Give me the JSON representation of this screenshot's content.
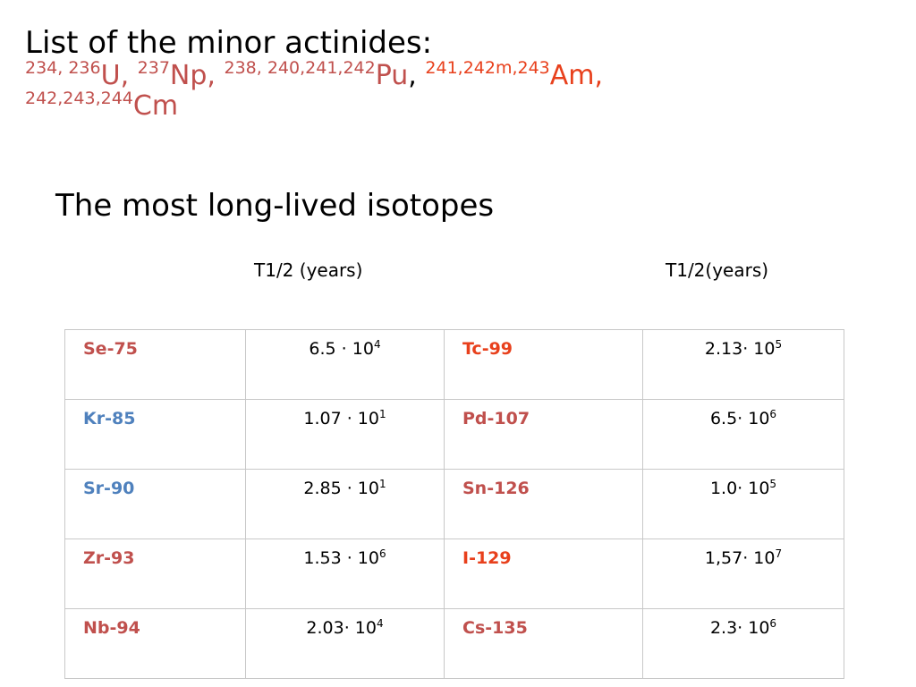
{
  "title": "List of the minor actinides:",
  "actinides": [
    {
      "mass": "234, 236",
      "symbol": "U,",
      "color": "#c0504d"
    },
    {
      "mass": "237",
      "symbol": "Np,",
      "color": "#c0504d"
    },
    {
      "mass": "238, 240,241,242",
      "symbol": "Pu",
      "color": "#c0504d",
      "trailing": ","
    },
    {
      "mass": "241,242m,243",
      "symbol": "Am,",
      "color": "#e8401c"
    },
    {
      "mass": "242,243,244",
      "symbol": "Cm",
      "color": "#c0504d"
    }
  ],
  "subtitle": "The most long-lived isotopes",
  "col_headers": [
    "T1/2 (years)",
    "T1/2(years)"
  ],
  "rows": [
    {
      "iso1": "Se-75",
      "iso1_color": "#c0504d",
      "val1_base": "6.5 · 10",
      "val1_exp": "4",
      "iso2": "Tc-99",
      "iso2_color": "#e8401c",
      "val2_base": "2.13· 10",
      "val2_exp": "5"
    },
    {
      "iso1": "Kr-85",
      "iso1_color": "#4f81bd",
      "val1_base": "1.07 · 10",
      "val1_exp": "1",
      "iso2": "Pd-107",
      "iso2_color": "#c0504d",
      "val2_base": "6.5· 10",
      "val2_exp": "6"
    },
    {
      "iso1": "Sr-90",
      "iso1_color": "#4f81bd",
      "val1_base": "2.85 · 10",
      "val1_exp": "1",
      "iso2": "Sn-126",
      "iso2_color": "#c0504d",
      "val2_base": "1.0· 10",
      "val2_exp": "5"
    },
    {
      "iso1": "Zr-93",
      "iso1_color": "#c0504d",
      "val1_base": "1.53 · 10",
      "val1_exp": "6",
      "iso2": "I-129",
      "iso2_color": "#e8401c",
      "val2_base": "1,57· 10",
      "val2_exp": "7"
    },
    {
      "iso1": "Nb-94",
      "iso1_color": "#c0504d",
      "val1_base": "2.03· 10",
      "val1_exp": "4",
      "iso2": "Cs-135",
      "iso2_color": "#c0504d",
      "val2_base": "2.3· 10",
      "val2_exp": "6"
    }
  ]
}
